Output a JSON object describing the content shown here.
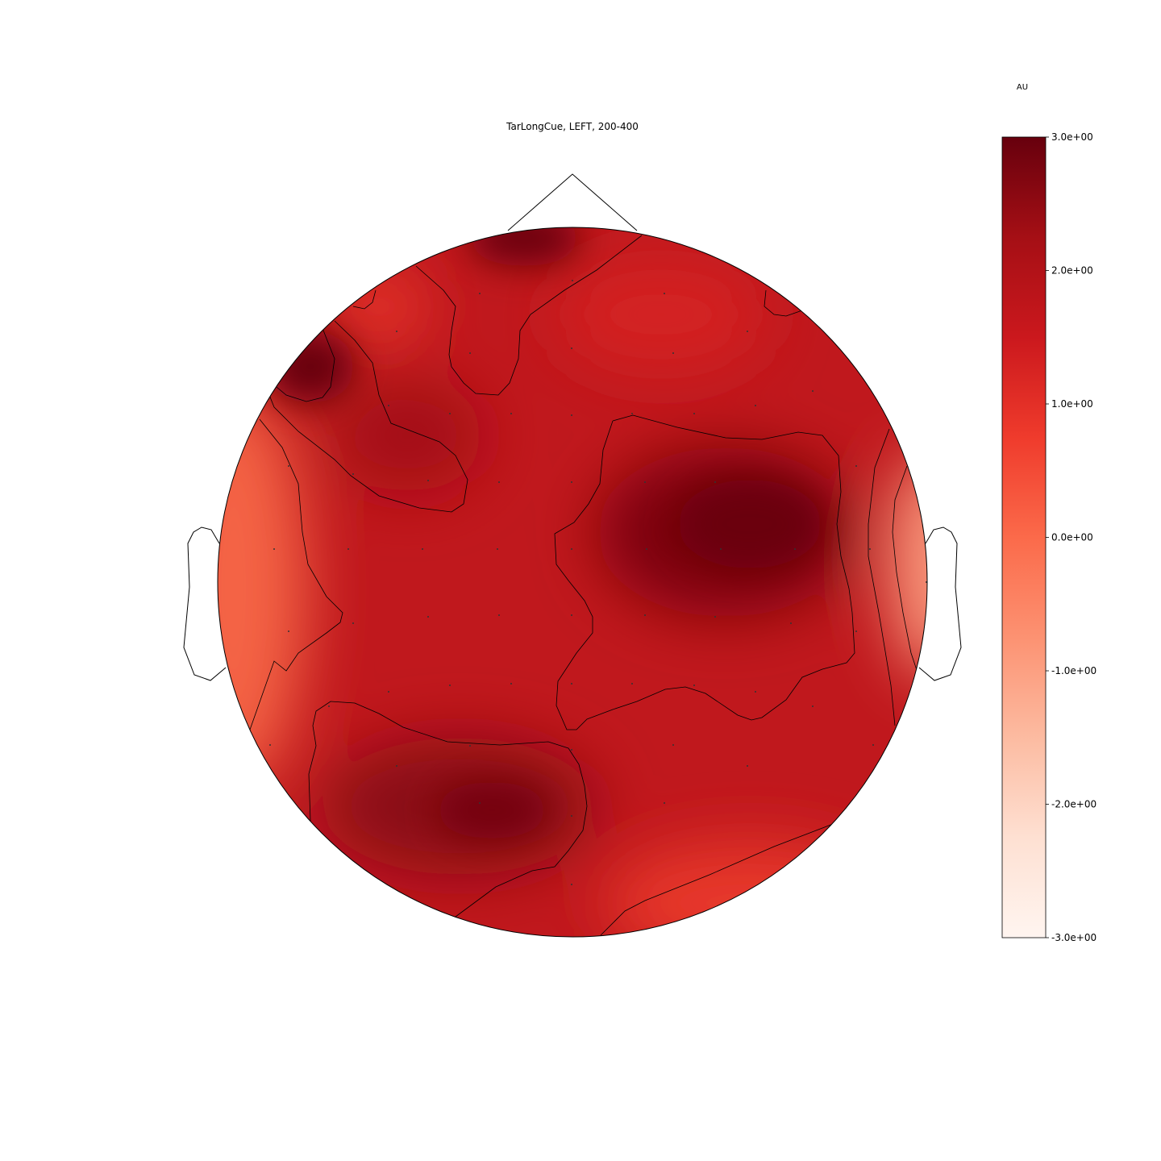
{
  "chart_data": {
    "type": "heatmap",
    "subtype": "scalp-topomap",
    "title": "TarLongCue, LEFT, 200-400",
    "colorbar": {
      "unit_label": "AU",
      "colormap": "Reds",
      "range": [
        -3.0,
        3.0
      ],
      "tick_values": [
        3.0,
        2.0,
        1.0,
        0.0,
        -1.0,
        -2.0,
        -3.0
      ],
      "tick_labels": [
        "3.0e+00",
        "2.0e+00",
        "1.0e+00",
        "0.0e+00",
        "-1.0e+00",
        "-2.0e+00",
        "-3.0e+00"
      ]
    },
    "value_estimate_min": 0.0,
    "value_estimate_max": 3.0,
    "region_estimates": [
      {
        "region": "left-frontal-edge",
        "value": 2.9
      },
      {
        "region": "frontal-midline",
        "value": 2.8
      },
      {
        "region": "right-central",
        "value": 2.9
      },
      {
        "region": "left-occipital",
        "value": 2.8
      },
      {
        "region": "left-temporal",
        "value": 0.7
      },
      {
        "region": "right-temporal-edge",
        "value": 0.1
      },
      {
        "region": "right-posterior",
        "value": 1.2
      },
      {
        "region": "center",
        "value": 1.9
      }
    ],
    "grid": false
  },
  "colors": {
    "cmap_stops": [
      "#fff5f0",
      "#fee0d2",
      "#fcbba1",
      "#fc9272",
      "#fb6a4a",
      "#ef3b2c",
      "#cb181d",
      "#a50f15",
      "#67000d"
    ],
    "outline": "#000000",
    "sensor": "#333333"
  }
}
